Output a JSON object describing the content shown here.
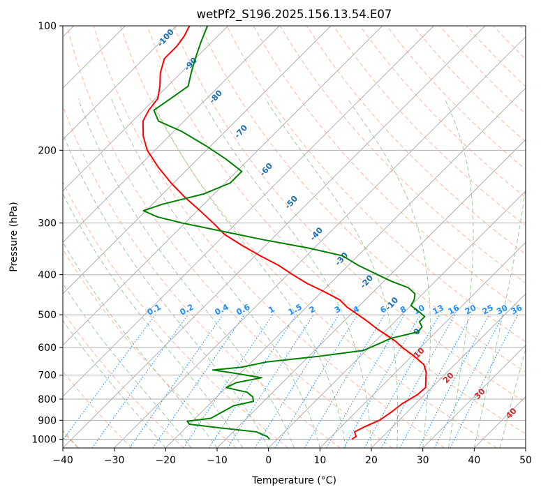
{
  "chart_data": {
    "type": "line",
    "subtype": "skew-t log-p",
    "title": "wetPf2_S196.2025.156.13.54.E07",
    "xlabel": "Temperature (°C)",
    "ylabel": "Pressure (hPa)",
    "xlim": [
      -40,
      50
    ],
    "ylim": [
      1050,
      100
    ],
    "y_scale": "log",
    "grid": true,
    "x_ticks": [
      -40,
      -30,
      -20,
      -10,
      0,
      10,
      20,
      30,
      40,
      50
    ],
    "x_tick_labels": [
      "−40",
      "−30",
      "−20",
      "−10",
      "0",
      "10",
      "20",
      "30",
      "40",
      "50"
    ],
    "y_ticks": [
      100,
      200,
      300,
      400,
      500,
      600,
      700,
      800,
      900,
      1000
    ],
    "y_tick_labels": [
      "100",
      "200",
      "300",
      "400",
      "500",
      "600",
      "700",
      "800",
      "900",
      "1000"
    ],
    "colors": {
      "temperature": "#ff0000",
      "dewpoint": "#008000",
      "isotherm": "#b0b0b0",
      "dry_adiabat": "#ffa07a",
      "moist_adiabat": "#90c890",
      "mixing_ratio": "#1e90ff",
      "dry_label": "#1f6fb0",
      "moist_label": "#d62728",
      "lcl_curve": "#d2b48c"
    },
    "series": [
      {
        "key": "temperature",
        "p": [
          1000,
          985,
          960,
          930,
          900,
          860,
          820,
          780,
          750,
          720,
          690,
          660,
          630,
          600,
          580,
          560,
          540,
          520,
          500,
          480,
          460,
          440,
          420,
          400,
          380,
          360,
          340,
          320,
          300,
          280,
          260,
          240,
          220,
          200,
          185,
          170,
          160,
          150,
          140,
          130,
          120,
          112,
          106,
          100
        ],
        "t": [
          14.5,
          14.8,
          13.6,
          14.7,
          16.2,
          16.9,
          17.4,
          18.6,
          18.8,
          17.4,
          16.0,
          14.0,
          10.5,
          6.5,
          4.0,
          1.0,
          -2.2,
          -5.2,
          -8.5,
          -12.0,
          -15.0,
          -19.5,
          -24.5,
          -29.0,
          -33.5,
          -39.0,
          -44.5,
          -50.0,
          -54.5,
          -59.5,
          -65.0,
          -70.5,
          -76.0,
          -81.5,
          -85.0,
          -88.0,
          -89.0,
          -89.5,
          -91.5,
          -94.0,
          -96.0,
          -96.0,
          -96.5,
          -97.5
        ]
      },
      {
        "key": "dewpoint",
        "p": [
          1000,
          985,
          960,
          940,
          920,
          905,
          890,
          860,
          830,
          810,
          790,
          770,
          750,
          730,
          710,
          690,
          680,
          670,
          650,
          630,
          610,
          590,
          570,
          550,
          535,
          520,
          505,
          490,
          475,
          460,
          445,
          430,
          415,
          400,
          380,
          360,
          345,
          330,
          315,
          300,
          290,
          280,
          270,
          255,
          240,
          225,
          210,
          195,
          180,
          170,
          160,
          150,
          140,
          130,
          120,
          110,
          100
        ],
        "t": [
          -1.5,
          -2.5,
          -5.5,
          -13.0,
          -20.0,
          -21.0,
          -17.0,
          -16.0,
          -15.0,
          -12.0,
          -13.0,
          -15.0,
          -20.0,
          -19.0,
          -15.0,
          -22.0,
          -26.0,
          -21.0,
          -17.0,
          -8.0,
          -0.5,
          1.0,
          2.5,
          6.5,
          6.3,
          4.8,
          4.8,
          2.5,
          0.0,
          -0.5,
          -1.5,
          -4.0,
          -8.5,
          -12.5,
          -18.0,
          -23.0,
          -31.0,
          -41.0,
          -50.5,
          -60.5,
          -66.5,
          -70.5,
          -68.0,
          -62.0,
          -59.0,
          -59.0,
          -64.5,
          -71.0,
          -78.5,
          -85.0,
          -88.0,
          -87.0,
          -86.0,
          -88.0,
          -90.0,
          -92.0,
          -94.0
        ]
      }
    ],
    "mixing_ratio_labels": [
      "0.1",
      "0.2",
      "0.4",
      "0.6",
      "1",
      "1.5",
      "2",
      "3",
      "4",
      "6",
      "8",
      "10",
      "13",
      "16",
      "20",
      "25",
      "30",
      "36"
    ],
    "mixing_ratio_values": [
      0.1,
      0.2,
      0.4,
      0.6,
      1,
      1.5,
      2,
      3,
      4,
      6,
      8,
      10,
      13,
      16,
      20,
      25,
      30,
      36
    ],
    "dry_adiabat_labels": [
      "-100",
      "-90",
      "-80",
      "-70",
      "-60",
      "-50",
      "-40",
      "-30",
      "-20",
      "-10",
      "0"
    ],
    "moist_adiabat_labels": [
      "10",
      "20",
      "30",
      "40"
    ]
  }
}
